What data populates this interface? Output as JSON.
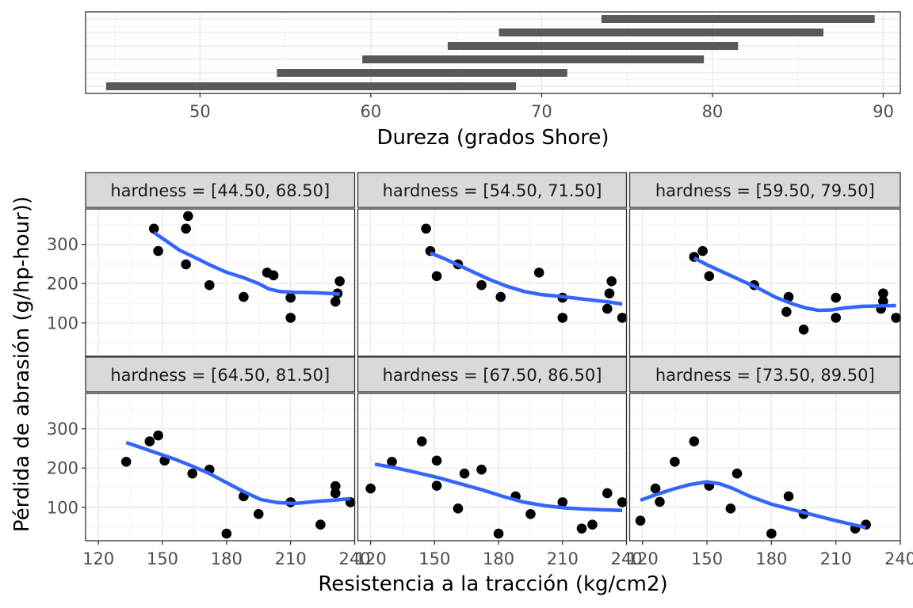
{
  "colors": {
    "bar": "#595959",
    "point": "#000000",
    "smooth": "#3366FF",
    "strip_bg": "#D9D9D9",
    "grid_major": "#EBEBEB",
    "grid_minor": "#F5F5F5",
    "panel_border": "#333333",
    "text": "#000000",
    "tick_text": "#4D4D4D"
  },
  "chart_data": [
    {
      "type": "bar",
      "orientation": "horizontal-range",
      "xlabel": "Dureza (grados Shore)",
      "xlim": [
        43.3,
        91.0
      ],
      "xticks": [
        "50",
        "60",
        "70",
        "80",
        "90"
      ],
      "xtick_values": [
        50,
        60,
        70,
        80,
        90
      ],
      "grid": true,
      "ranges": [
        [
          44.5,
          68.5
        ],
        [
          54.5,
          71.5
        ],
        [
          59.5,
          79.5
        ],
        [
          64.5,
          81.5
        ],
        [
          67.5,
          86.5
        ],
        [
          73.5,
          89.5
        ]
      ]
    },
    {
      "type": "scatter",
      "xlabel": "Resistencia a la tracción (kg/cm2)",
      "ylabel": "Pérdida de abrasión (g/hp-hour))",
      "xlim": [
        114,
        240
      ],
      "ylim": [
        15,
        390
      ],
      "xticks": [
        "120",
        "150",
        "180",
        "210",
        "240"
      ],
      "xtick_values": [
        120,
        150,
        180,
        210,
        240
      ],
      "yticks": [
        "100",
        "200",
        "300"
      ],
      "ytick_values": [
        100,
        200,
        300
      ],
      "grid": true,
      "panels": [
        {
          "label": "hardness = [44.50, 68.50]",
          "points": [
            [
              146,
              340
            ],
            [
              148,
              283
            ],
            [
              161,
              340
            ],
            [
              162,
              372
            ],
            [
              161,
              249
            ],
            [
              172,
              196
            ],
            [
              188,
              166
            ],
            [
              199,
              228
            ],
            [
              202,
              221
            ],
            [
              210,
              164
            ],
            [
              210,
              113
            ],
            [
              231,
              154
            ],
            [
              232,
              175
            ],
            [
              233,
              206
            ]
          ],
          "smooth": [
            [
              146,
              330
            ],
            [
              152,
              308
            ],
            [
              158,
              285
            ],
            [
              165,
              267
            ],
            [
              172,
              248
            ],
            [
              180,
              229
            ],
            [
              188,
              215
            ],
            [
              195,
              200
            ],
            [
              200,
              186
            ],
            [
              205,
              180
            ],
            [
              212,
              178
            ],
            [
              220,
              177
            ],
            [
              228,
              175
            ],
            [
              233,
              173
            ]
          ]
        },
        {
          "label": "hardness = [54.50, 71.50]",
          "points": [
            [
              146,
              340
            ],
            [
              148,
              283
            ],
            [
              151,
              219
            ],
            [
              161,
              249
            ],
            [
              172,
              196
            ],
            [
              181,
              166
            ],
            [
              199,
              228
            ],
            [
              210,
              164
            ],
            [
              210,
              113
            ],
            [
              231,
              136
            ],
            [
              232,
              175
            ],
            [
              233,
              206
            ],
            [
              238,
              113
            ]
          ],
          "smooth": [
            [
              148,
              278
            ],
            [
              154,
              265
            ],
            [
              160,
              250
            ],
            [
              168,
              230
            ],
            [
              176,
              210
            ],
            [
              184,
              193
            ],
            [
              192,
              180
            ],
            [
              200,
              172
            ],
            [
              208,
              168
            ],
            [
              216,
              163
            ],
            [
              224,
              158
            ],
            [
              232,
              153
            ],
            [
              238,
              148
            ]
          ]
        },
        {
          "label": "hardness = [59.50, 79.50]",
          "points": [
            [
              144,
              268
            ],
            [
              148,
              283
            ],
            [
              151,
              219
            ],
            [
              172,
              196
            ],
            [
              187,
              128
            ],
            [
              188,
              166
            ],
            [
              195,
              83
            ],
            [
              210,
              164
            ],
            [
              210,
              113
            ],
            [
              231,
              136
            ],
            [
              232,
              175
            ],
            [
              232,
              155
            ],
            [
              238,
              113
            ]
          ],
          "smooth": [
            [
              144,
              265
            ],
            [
              150,
              248
            ],
            [
              158,
              228
            ],
            [
              166,
              208
            ],
            [
              174,
              188
            ],
            [
              182,
              165
            ],
            [
              190,
              148
            ],
            [
              196,
              138
            ],
            [
              202,
              132
            ],
            [
              208,
              133
            ],
            [
              214,
              138
            ],
            [
              222,
              142
            ],
            [
              230,
              143
            ],
            [
              238,
              144
            ]
          ]
        },
        {
          "label": "hardness = [64.50, 81.50]",
          "points": [
            [
              133,
              216
            ],
            [
              144,
              268
            ],
            [
              148,
              283
            ],
            [
              151,
              219
            ],
            [
              164,
              186
            ],
            [
              172,
              196
            ],
            [
              180,
              33
            ],
            [
              188,
              128
            ],
            [
              195,
              83
            ],
            [
              210,
              113
            ],
            [
              224,
              56
            ],
            [
              231,
              154
            ],
            [
              231,
              136
            ],
            [
              238,
              113
            ]
          ],
          "smooth": [
            [
              133,
              265
            ],
            [
              140,
              252
            ],
            [
              148,
              237
            ],
            [
              156,
              222
            ],
            [
              164,
              205
            ],
            [
              172,
              186
            ],
            [
              180,
              163
            ],
            [
              188,
              140
            ],
            [
              196,
              120
            ],
            [
              204,
              112
            ],
            [
              212,
              110
            ],
            [
              222,
              115
            ],
            [
              230,
              118
            ],
            [
              238,
              122
            ]
          ]
        },
        {
          "label": "hardness = [67.50, 86.50]",
          "points": [
            [
              120,
              148
            ],
            [
              130,
              216
            ],
            [
              144,
              268
            ],
            [
              151,
              219
            ],
            [
              151,
              155
            ],
            [
              161,
              97
            ],
            [
              164,
              186
            ],
            [
              172,
              196
            ],
            [
              180,
              33
            ],
            [
              188,
              128
            ],
            [
              195,
              83
            ],
            [
              210,
              113
            ],
            [
              219,
              46
            ],
            [
              224,
              56
            ],
            [
              231,
              136
            ],
            [
              238,
              113
            ]
          ],
          "smooth": [
            [
              122,
              210
            ],
            [
              132,
              200
            ],
            [
              142,
              188
            ],
            [
              152,
              175
            ],
            [
              162,
              160
            ],
            [
              172,
              145
            ],
            [
              182,
              128
            ],
            [
              192,
              113
            ],
            [
              202,
              104
            ],
            [
              212,
              98
            ],
            [
              222,
              95
            ],
            [
              232,
              93
            ],
            [
              238,
              92
            ]
          ]
        },
        {
          "label": "hardness = [73.50, 89.50]",
          "points": [
            [
              119,
              66
            ],
            [
              126,
              148
            ],
            [
              128,
              114
            ],
            [
              135,
              216
            ],
            [
              144,
              268
            ],
            [
              151,
              155
            ],
            [
              164,
              186
            ],
            [
              161,
              97
            ],
            [
              180,
              33
            ],
            [
              188,
              128
            ],
            [
              195,
              83
            ],
            [
              219,
              46
            ],
            [
              224,
              56
            ]
          ],
          "smooth": [
            [
              119,
              118
            ],
            [
              126,
              132
            ],
            [
              134,
              146
            ],
            [
              142,
              158
            ],
            [
              150,
              165
            ],
            [
              156,
              160
            ],
            [
              162,
              148
            ],
            [
              170,
              128
            ],
            [
              180,
              108
            ],
            [
              190,
              94
            ],
            [
              200,
              80
            ],
            [
              210,
              66
            ],
            [
              218,
              56
            ],
            [
              224,
              48
            ]
          ]
        }
      ]
    }
  ]
}
